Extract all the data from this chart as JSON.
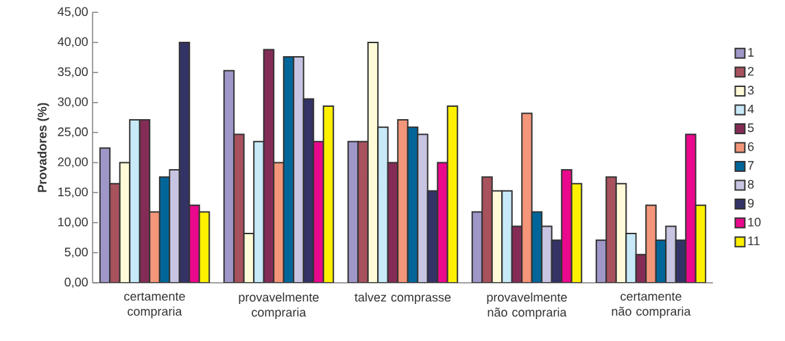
{
  "chart_data": {
    "type": "bar",
    "ylabel": "Provadores (%)",
    "categories": [
      "certamente compraria",
      "provavelmente compraria",
      "talvez comprasse",
      "provavelmente não compraria",
      "certamente não compraria"
    ],
    "ylim": [
      0,
      45
    ],
    "yticks": [
      {
        "value": 0,
        "label": "0,00"
      },
      {
        "value": 5,
        "label": "5,00"
      },
      {
        "value": 10,
        "label": "10,00"
      },
      {
        "value": 15,
        "label": "15,00"
      },
      {
        "value": 20,
        "label": "20,00"
      },
      {
        "value": 25,
        "label": "25,00"
      },
      {
        "value": 30,
        "label": "30,00"
      },
      {
        "value": 35,
        "label": "35,00"
      },
      {
        "value": 40,
        "label": "40,00"
      },
      {
        "value": 45,
        "label": "45,00"
      }
    ],
    "grid": false,
    "legend": "right",
    "series": [
      {
        "name": "1",
        "color": "#9f97c8",
        "values": [
          22.4,
          35.3,
          23.5,
          11.8,
          7.1
        ]
      },
      {
        "name": "2",
        "color": "#a8525e",
        "values": [
          16.5,
          24.7,
          23.5,
          17.6,
          17.6
        ]
      },
      {
        "name": "3",
        "color": "#fffad8",
        "values": [
          20.0,
          8.2,
          40.0,
          15.3,
          16.5
        ]
      },
      {
        "name": "4",
        "color": "#c8eaf8",
        "values": [
          27.1,
          23.5,
          25.9,
          15.3,
          8.2
        ]
      },
      {
        "name": "5",
        "color": "#842c56",
        "values": [
          27.1,
          38.8,
          20.0,
          9.4,
          4.7
        ]
      },
      {
        "name": "6",
        "color": "#f4967a",
        "values": [
          11.8,
          20.0,
          27.1,
          28.2,
          12.9
        ]
      },
      {
        "name": "7",
        "color": "#006699",
        "values": [
          17.6,
          37.6,
          25.9,
          11.8,
          7.1
        ]
      },
      {
        "name": "8",
        "color": "#c8c5e2",
        "values": [
          18.8,
          37.6,
          24.7,
          9.4,
          9.4
        ]
      },
      {
        "name": "9",
        "color": "#333366",
        "values": [
          40.0,
          30.6,
          15.3,
          7.1,
          7.1
        ]
      },
      {
        "name": "10",
        "color": "#ea098c",
        "values": [
          12.9,
          23.5,
          20.0,
          18.8,
          24.7
        ]
      },
      {
        "name": "11",
        "color": "#fff000",
        "values": [
          11.8,
          29.4,
          29.4,
          16.5,
          12.9
        ]
      }
    ]
  }
}
